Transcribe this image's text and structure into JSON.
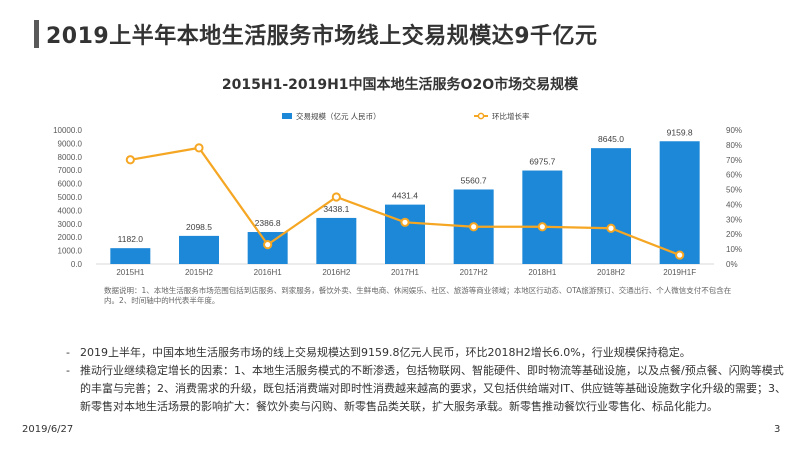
{
  "page": {
    "title": "2019上半年本地生活服务市场线上交易规模达9千亿元",
    "date": "2019/6/27",
    "page_number": "3"
  },
  "chart_data": {
    "type": "bar",
    "title": "2015H1-2019H1中国本地生活服务O2O市场交易规模",
    "categories": [
      "2015H1",
      "2015H2",
      "2016H1",
      "2016H2",
      "2017H1",
      "2017H2",
      "2018H1",
      "2018H2",
      "2019H1F"
    ],
    "series": [
      {
        "name": "交易规模（亿元 人民币）",
        "type": "bar",
        "axis": "left",
        "color": "#1E88D8",
        "values": [
          1182.0,
          2098.5,
          2386.8,
          3438.1,
          4431.4,
          5560.7,
          6975.7,
          8645.0,
          9159.8
        ],
        "labels": [
          "1182.0",
          "2098.5",
          "2386.8",
          "3438.1",
          "4431.4",
          "5560.7",
          "6975.7",
          "8645.0",
          "9159.8"
        ]
      },
      {
        "name": "环比增长率",
        "type": "line",
        "axis": "right",
        "color": "#F5A623",
        "values": [
          70,
          78,
          13,
          45,
          28,
          25,
          25,
          24,
          6
        ]
      }
    ],
    "y_left": {
      "min": 0,
      "max": 10000,
      "step": 1000,
      "ticks": [
        "0.0",
        "1000.0",
        "2000.0",
        "3000.0",
        "4000.0",
        "5000.0",
        "6000.0",
        "7000.0",
        "8000.0",
        "9000.0",
        "10000.0"
      ]
    },
    "y_right": {
      "min": 0,
      "max": 90,
      "step": 10,
      "ticks": [
        "0%",
        "10%",
        "20%",
        "30%",
        "40%",
        "50%",
        "60%",
        "70%",
        "80%",
        "90%"
      ]
    },
    "legend_position": "top-center",
    "grid": false,
    "note": "数据说明：1、本地生活服务市场范围包括到店服务、到家服务，餐饮外卖、生鲜电商、休闲娱乐、社区、旅游等商业领域；本地区行动态、OTA旅游预订、交通出行、个人微信支付不包含在内。2、时间轴中的H代表半年度。"
  },
  "bullets": [
    "2019上半年，中国本地生活服务市场的线上交易规模达到9159.8亿元人民币，环比2018H2增长6.0%，行业规模保持稳定。",
    "推动行业继续稳定增长的因素：1、本地生活服务模式的不断渗透，包括物联网、智能硬件、即时物流等基础设施，以及点餐/预点餐、闪购等模式的丰富与完善；2、消费需求的升级，既包括消费端对即时性消费越来越高的要求，又包括供给端对IT、供应链等基础设施数字化升级的需要；3、新零售对本地生活场景的影响扩大：餐饮外卖与闪购、新零售品类关联，扩大服务承载。新零售推动餐饮行业零售化、标品化能力。"
  ]
}
